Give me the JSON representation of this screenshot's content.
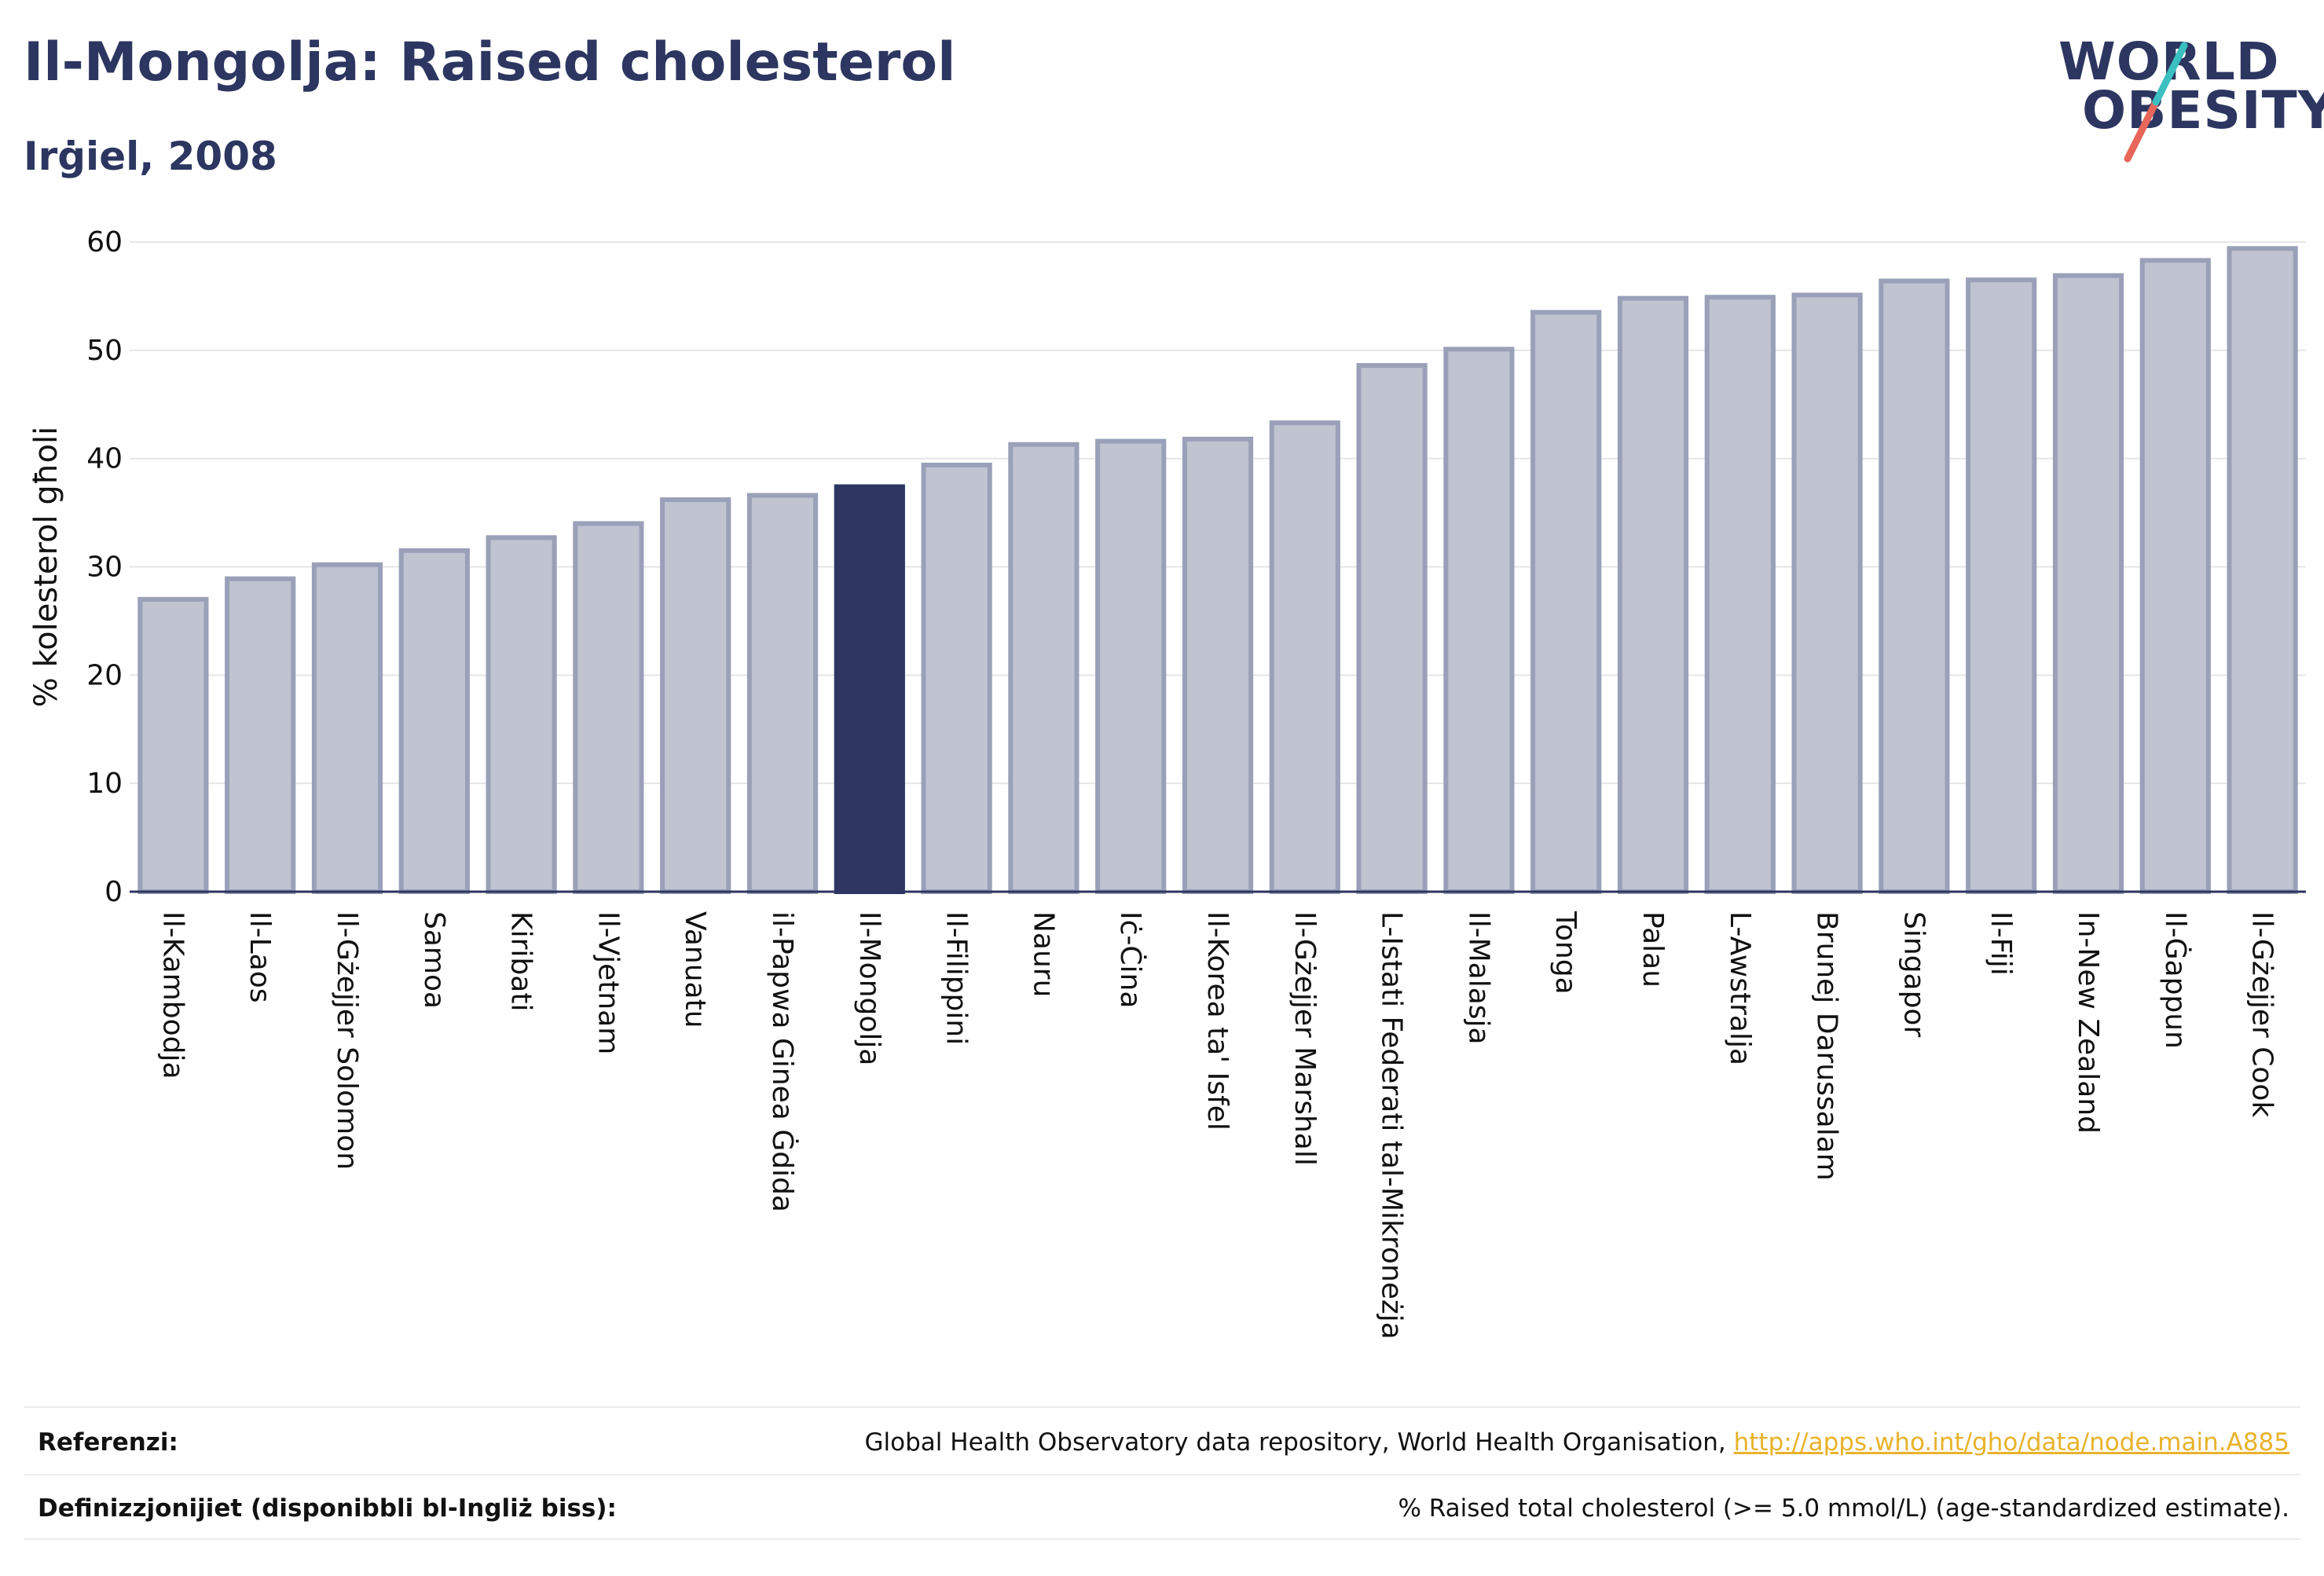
{
  "header": {
    "title": "Il-Mongolja: Raised cholesterol",
    "subtitle": "Irġiel, 2008"
  },
  "logo": {
    "line1": "WORLD",
    "line2": "OBESITY",
    "colors": {
      "text": "#2c3660",
      "slash_teal": "#3bbfc0",
      "slash_red": "#e8665a"
    }
  },
  "chart_data": {
    "type": "bar",
    "title": "Il-Mongolja: Raised cholesterol",
    "subtitle": "Irġiel, 2008",
    "ylabel": "% kolesterol għoli",
    "xlabel": "",
    "ylim": [
      0,
      60
    ],
    "yticks": [
      0,
      10,
      20,
      30,
      40,
      50,
      60
    ],
    "grid": true,
    "highlight_category": "Il-Mongolja",
    "colors": {
      "bar": "#c0c3d0",
      "bar_edge": "#9aa0b8",
      "highlight": "#2c3660"
    },
    "categories": [
      "Il-Kambodja",
      "Il-Laos",
      "Il-Gżejjer Solomon",
      "Samoa",
      "Kiribati",
      "Il-Vjetnam",
      "Vanuatu",
      "il-Papwa Ginea Ġdida",
      "Il-Mongolja",
      "Il-Filippini",
      "Nauru",
      "Iċ-Ċina",
      "Il-Korea ta' Isfel",
      "Il-Gżejjer Marshall",
      "L-Istati Federati tal-Mikroneżja",
      "Il-Malasja",
      "Tonga",
      "Palau",
      "L-Awstralja",
      "Brunej Darussalam",
      "Singapor",
      "Il-Fiji",
      "In-New Zealand",
      "Il-Ġappun",
      "Il-Gżejjer Cook"
    ],
    "values": [
      27.0,
      28.9,
      30.2,
      31.5,
      32.7,
      34.0,
      36.2,
      36.6,
      37.4,
      39.4,
      41.3,
      41.6,
      41.8,
      43.3,
      48.6,
      50.1,
      53.5,
      54.8,
      54.9,
      55.1,
      56.4,
      56.5,
      56.9,
      58.3,
      59.4
    ]
  },
  "footer": {
    "references_label": "Referenzi:",
    "references_text": "Global Health Observatory data repository, World Health Organisation, ",
    "references_link": "http://apps.who.int/gho/data/node.main.A885",
    "definitions_label": "Definizzjonijiet (disponibbli bl-Ingliż biss):",
    "definitions_text": "% Raised total cholesterol (>= 5.0 mmol/L) (age-standardized estimate)."
  }
}
